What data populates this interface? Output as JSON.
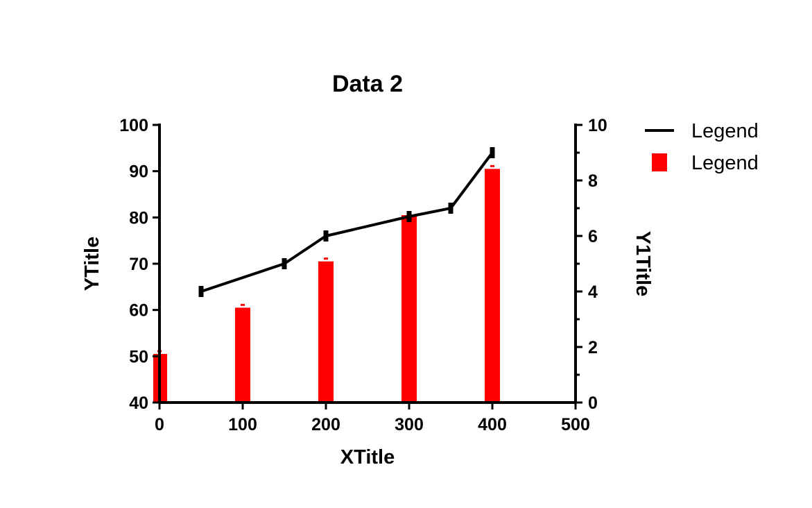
{
  "chart_data": {
    "type": "bar",
    "title": "Data 2",
    "xlabel": "XTitle",
    "ylabel": "YTitle",
    "y2label": "Y1Title",
    "xlim": [
      0,
      500
    ],
    "ylim": [
      40,
      100
    ],
    "y2lim": [
      0,
      10
    ],
    "x_ticks": [
      "0",
      "100",
      "200",
      "300",
      "400",
      "500"
    ],
    "y_ticks": [
      "40",
      "50",
      "60",
      "70",
      "80",
      "90",
      "100"
    ],
    "y2_ticks": [
      "0",
      "2",
      "4",
      "6",
      "8",
      "10"
    ],
    "grid": false,
    "legend_position": "top-right",
    "series": [
      {
        "name": "Legend",
        "type": "line",
        "axis": "right",
        "color": "#000000",
        "x": [
          50,
          150,
          200,
          300,
          350,
          400
        ],
        "values": [
          4.0,
          5.0,
          6.0,
          6.7,
          7.0,
          9.0
        ]
      },
      {
        "name": "Legend",
        "type": "bar",
        "axis": "left",
        "color": "#ff0000",
        "x": [
          0,
          100,
          200,
          300,
          400
        ],
        "values": [
          50.5,
          60.5,
          70.5,
          80.5,
          90.5
        ]
      }
    ]
  }
}
